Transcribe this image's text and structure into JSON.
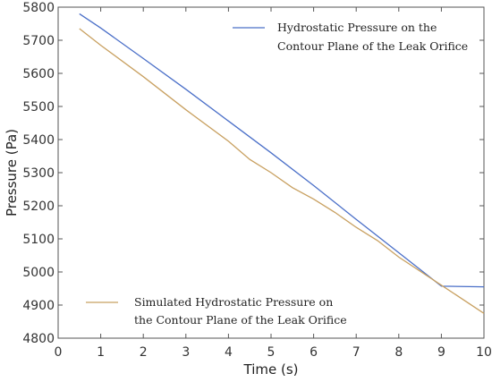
{
  "chart_data": {
    "type": "line",
    "xlabel": "Time (s)",
    "ylabel": "Pressure (Pa)",
    "xlim": [
      0,
      10
    ],
    "ylim": [
      4800,
      5800
    ],
    "xticks": [
      0,
      1,
      2,
      3,
      4,
      5,
      6,
      7,
      8,
      9,
      10
    ],
    "yticks": [
      4800,
      4900,
      5000,
      5100,
      5200,
      5300,
      5400,
      5500,
      5600,
      5700,
      5800
    ],
    "grid": false,
    "series": [
      {
        "name": "Hydrostatic Pressure on the Contour Plane of the Leak Orifice",
        "legend_lines": [
          "Hydrostatic Pressure on the",
          "Contour Plane of the Leak Orifice"
        ],
        "legend_position": "top-right",
        "color": "#4a6fc8",
        "x": [
          0.5,
          1,
          2,
          3,
          4,
          5,
          6,
          7,
          8,
          9,
          10
        ],
        "y": [
          5780,
          5737,
          5645,
          5552,
          5456,
          5360,
          5261,
          5159,
          5058,
          4957,
          4955
        ]
      },
      {
        "name": "Simulated Hydrostatic Pressure on the Contour Plane of the Leak Orifice",
        "legend_lines": [
          "Simulated Hydrostatic Pressure on",
          "the Contour Plane of the Leak Orifice"
        ],
        "legend_position": "bottom-left",
        "color": "#c8a060",
        "x": [
          0.5,
          1,
          2,
          3,
          4,
          4.5,
          5,
          5.5,
          6,
          6.5,
          7,
          7.5,
          8,
          9,
          10
        ],
        "y": [
          5735,
          5685,
          5590,
          5490,
          5395,
          5340,
          5300,
          5255,
          5220,
          5180,
          5135,
          5095,
          5045,
          4960,
          4875
        ]
      }
    ]
  }
}
